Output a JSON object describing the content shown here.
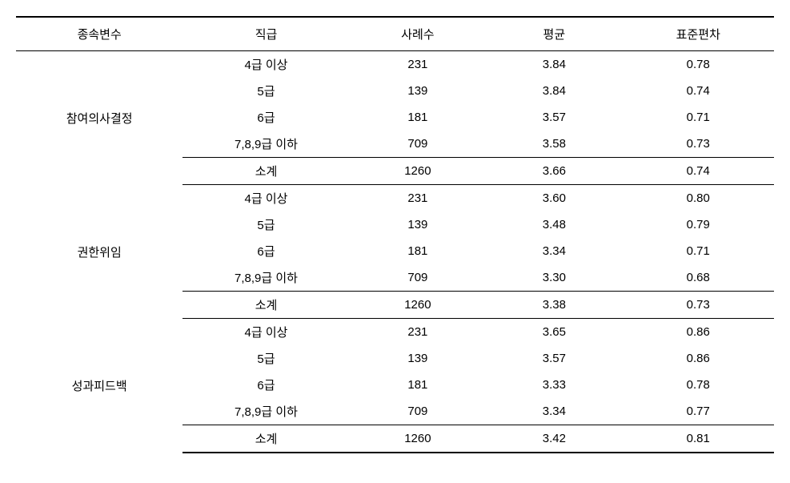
{
  "table": {
    "type": "table",
    "background_color": "#ffffff",
    "text_color": "#000000",
    "border_color": "#000000",
    "font_size_pt": 11,
    "columns": [
      {
        "key": "dep_var",
        "label": "종속변수",
        "align": "center"
      },
      {
        "key": "rank",
        "label": "직급",
        "align": "center"
      },
      {
        "key": "n",
        "label": "사례수",
        "align": "center"
      },
      {
        "key": "mean",
        "label": "평균",
        "align": "center"
      },
      {
        "key": "sd",
        "label": "표준편차",
        "align": "center"
      }
    ],
    "groups": [
      {
        "dep_var": "참여의사결정",
        "rows": [
          {
            "rank": "4급 이상",
            "n": "231",
            "mean": "3.84",
            "sd": "0.78"
          },
          {
            "rank": "5급",
            "n": "139",
            "mean": "3.84",
            "sd": "0.74"
          },
          {
            "rank": "6급",
            "n": "181",
            "mean": "3.57",
            "sd": "0.71"
          },
          {
            "rank": "7,8,9급 이하",
            "n": "709",
            "mean": "3.58",
            "sd": "0.73"
          }
        ],
        "subtotal": {
          "rank": "소계",
          "n": "1260",
          "mean": "3.66",
          "sd": "0.74"
        }
      },
      {
        "dep_var": "권한위임",
        "rows": [
          {
            "rank": "4급 이상",
            "n": "231",
            "mean": "3.60",
            "sd": "0.80"
          },
          {
            "rank": "5급",
            "n": "139",
            "mean": "3.48",
            "sd": "0.79"
          },
          {
            "rank": "6급",
            "n": "181",
            "mean": "3.34",
            "sd": "0.71"
          },
          {
            "rank": "7,8,9급 이하",
            "n": "709",
            "mean": "3.30",
            "sd": "0.68"
          }
        ],
        "subtotal": {
          "rank": "소계",
          "n": "1260",
          "mean": "3.38",
          "sd": "0.73"
        }
      },
      {
        "dep_var": "성과피드백",
        "rows": [
          {
            "rank": "4급 이상",
            "n": "231",
            "mean": "3.65",
            "sd": "0.86"
          },
          {
            "rank": "5급",
            "n": "139",
            "mean": "3.57",
            "sd": "0.86"
          },
          {
            "rank": "6급",
            "n": "181",
            "mean": "3.33",
            "sd": "0.78"
          },
          {
            "rank": "7,8,9급 이하",
            "n": "709",
            "mean": "3.34",
            "sd": "0.77"
          }
        ],
        "subtotal": {
          "rank": "소계",
          "n": "1260",
          "mean": "3.42",
          "sd": "0.81"
        }
      }
    ]
  }
}
